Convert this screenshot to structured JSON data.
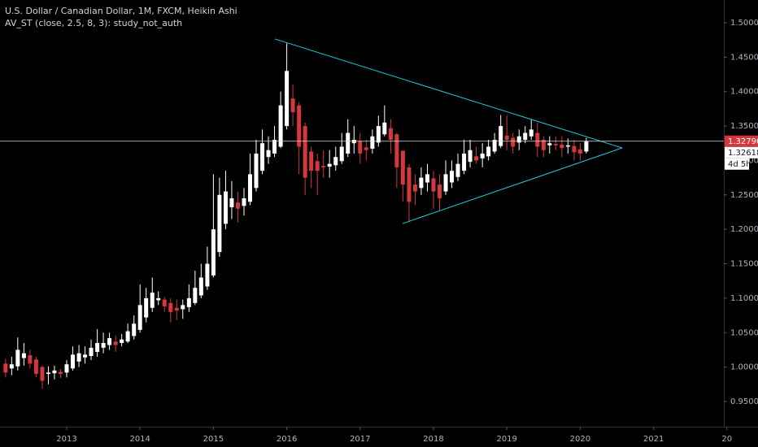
{
  "chart_data": {
    "type": "candlestick",
    "title": "U.S. Dollar / Canadian Dollar, 1M, FXCM, Heikin Ashi",
    "subtitle": "AV_ST (close, 2.5, 8, 3): study_not_auth",
    "up_color": "#ffffff",
    "down_color": "#d4373c",
    "x": [
      2012.167,
      2012.25,
      2012.333,
      2012.417,
      2012.5,
      2012.583,
      2012.667,
      2012.75,
      2012.833,
      2012.917,
      2013,
      2013.083,
      2013.167,
      2013.25,
      2013.333,
      2013.417,
      2013.5,
      2013.583,
      2013.667,
      2013.75,
      2013.833,
      2013.917,
      2014,
      2014.083,
      2014.167,
      2014.25,
      2014.333,
      2014.417,
      2014.5,
      2014.583,
      2014.667,
      2014.75,
      2014.833,
      2014.917,
      2015,
      2015.083,
      2015.167,
      2015.25,
      2015.333,
      2015.417,
      2015.5,
      2015.583,
      2015.667,
      2015.75,
      2015.833,
      2015.917,
      2016,
      2016.083,
      2016.167,
      2016.25,
      2016.333,
      2016.417,
      2016.5,
      2016.583,
      2016.667,
      2016.75,
      2016.833,
      2016.917,
      2017,
      2017.083,
      2017.167,
      2017.25,
      2017.333,
      2017.417,
      2017.5,
      2017.583,
      2017.667,
      2017.75,
      2017.833,
      2017.917,
      2018,
      2018.083,
      2018.167,
      2018.25,
      2018.333,
      2018.417,
      2018.5,
      2018.583,
      2018.667,
      2018.75,
      2018.833,
      2018.917,
      2019,
      2019.083,
      2019.167,
      2019.25,
      2019.333,
      2019.417,
      2019.5,
      2019.583,
      2019.667,
      2019.75,
      2019.833,
      2019.917,
      2020,
      2020.083
    ],
    "open": [
      1.005,
      0.998,
      1.001,
      1.013,
      1.017,
      1.011,
      1.0,
      0.99,
      0.991,
      0.993,
      0.992,
      0.998,
      1.008,
      1.014,
      1.016,
      1.022,
      1.028,
      1.032,
      1.037,
      1.035,
      1.037,
      1.045,
      1.054,
      1.072,
      1.086,
      1.097,
      1.098,
      1.093,
      1.086,
      1.084,
      1.087,
      1.093,
      1.104,
      1.117,
      1.133,
      1.167,
      1.208,
      1.232,
      1.239,
      1.234,
      1.24,
      1.26,
      1.285,
      1.305,
      1.31,
      1.32,
      1.35,
      1.39,
      1.38,
      1.35,
      1.313,
      1.299,
      1.292,
      1.291,
      1.293,
      1.299,
      1.31,
      1.325,
      1.328,
      1.319,
      1.317,
      1.326,
      1.338,
      1.347,
      1.338,
      1.314,
      1.29,
      1.265,
      1.26,
      1.268,
      1.274,
      1.265,
      1.255,
      1.268,
      1.276,
      1.285,
      1.298,
      1.306,
      1.303,
      1.306,
      1.313,
      1.321,
      1.336,
      1.333,
      1.326,
      1.33,
      1.335,
      1.34,
      1.33,
      1.322,
      1.324,
      1.323,
      1.32,
      1.321,
      1.316,
      1.313
    ],
    "high": [
      1.012,
      1.015,
      1.043,
      1.035,
      1.025,
      1.015,
      1.002,
      1.001,
      1.002,
      0.997,
      1.01,
      1.03,
      1.032,
      1.03,
      1.04,
      1.055,
      1.05,
      1.05,
      1.046,
      1.048,
      1.063,
      1.075,
      1.12,
      1.115,
      1.13,
      1.11,
      1.102,
      1.1,
      1.098,
      1.098,
      1.12,
      1.14,
      1.15,
      1.175,
      1.28,
      1.275,
      1.285,
      1.27,
      1.255,
      1.26,
      1.31,
      1.33,
      1.345,
      1.335,
      1.35,
      1.4,
      1.47,
      1.41,
      1.385,
      1.355,
      1.32,
      1.31,
      1.315,
      1.315,
      1.32,
      1.34,
      1.36,
      1.35,
      1.34,
      1.33,
      1.345,
      1.365,
      1.38,
      1.36,
      1.34,
      1.315,
      1.295,
      1.28,
      1.29,
      1.295,
      1.285,
      1.28,
      1.3,
      1.3,
      1.31,
      1.33,
      1.33,
      1.32,
      1.325,
      1.33,
      1.34,
      1.366,
      1.365,
      1.34,
      1.345,
      1.35,
      1.36,
      1.355,
      1.335,
      1.335,
      1.335,
      1.335,
      1.332,
      1.33,
      1.325,
      1.333
    ],
    "low": [
      0.985,
      0.988,
      0.995,
      1.002,
      0.998,
      0.985,
      0.968,
      0.975,
      0.982,
      0.984,
      0.985,
      0.995,
      1.0,
      1.005,
      1.01,
      1.015,
      1.02,
      1.025,
      1.022,
      1.03,
      1.035,
      1.04,
      1.05,
      1.065,
      1.08,
      1.09,
      1.08,
      1.065,
      1.068,
      1.07,
      1.08,
      1.09,
      1.1,
      1.112,
      1.13,
      1.16,
      1.2,
      1.215,
      1.21,
      1.22,
      1.235,
      1.255,
      1.28,
      1.295,
      1.305,
      1.318,
      1.345,
      1.35,
      1.28,
      1.25,
      1.26,
      1.25,
      1.275,
      1.275,
      1.285,
      1.295,
      1.305,
      1.31,
      1.295,
      1.3,
      1.31,
      1.32,
      1.335,
      1.31,
      1.26,
      1.24,
      1.21,
      1.235,
      1.25,
      1.255,
      1.23,
      1.228,
      1.25,
      1.26,
      1.27,
      1.28,
      1.29,
      1.295,
      1.29,
      1.3,
      1.31,
      1.318,
      1.315,
      1.31,
      1.315,
      1.325,
      1.33,
      1.305,
      1.305,
      1.31,
      1.315,
      1.305,
      1.31,
      1.3,
      1.3,
      1.31
    ],
    "close": [
      0.992,
      1.004,
      1.025,
      1.02,
      1.005,
      0.99,
      0.98,
      0.992,
      0.995,
      0.99,
      1.004,
      1.018,
      1.02,
      1.018,
      1.028,
      1.035,
      1.035,
      1.042,
      1.032,
      1.04,
      1.052,
      1.063,
      1.09,
      1.1,
      1.108,
      1.1,
      1.088,
      1.08,
      1.082,
      1.09,
      1.1,
      1.115,
      1.13,
      1.15,
      1.2,
      1.25,
      1.255,
      1.245,
      1.23,
      1.245,
      1.28,
      1.31,
      1.325,
      1.315,
      1.33,
      1.38,
      1.43,
      1.37,
      1.32,
      1.275,
      1.285,
      1.285,
      1.29,
      1.295,
      1.305,
      1.32,
      1.34,
      1.33,
      1.31,
      1.315,
      1.335,
      1.35,
      1.355,
      1.33,
      1.29,
      1.265,
      1.24,
      1.255,
      1.275,
      1.28,
      1.255,
      1.245,
      1.28,
      1.285,
      1.295,
      1.31,
      1.315,
      1.3,
      1.31,
      1.32,
      1.33,
      1.35,
      1.33,
      1.32,
      1.335,
      1.34,
      1.345,
      1.32,
      1.315,
      1.325,
      1.322,
      1.318,
      1.322,
      1.312,
      1.31,
      1.328
    ],
    "xlim": [
      2012.091,
      2021.958
    ],
    "xticks": [
      2013,
      2014,
      2015,
      2016,
      2017,
      2018,
      2019,
      2020,
      2021,
      {
        "value": 2022,
        "label": "20"
      }
    ],
    "ylim": [
      0.9134,
      1.533
    ],
    "yticks": [
      {
        "value": 0.95,
        "label": "0.95000"
      },
      {
        "value": 1.0,
        "label": "1.00000"
      },
      {
        "value": 1.05,
        "label": "1.05000"
      },
      {
        "value": 1.1,
        "label": "1.10000"
      },
      {
        "value": 1.15,
        "label": "1.15000"
      },
      {
        "value": 1.2,
        "label": "1.20000"
      },
      {
        "value": 1.25,
        "label": "1.25000"
      },
      {
        "value": 1.3,
        "label": "1.30000"
      },
      {
        "value": 1.35,
        "label": "1.35000"
      },
      {
        "value": 1.4,
        "label": "1.40000"
      },
      {
        "value": 1.45,
        "label": "1.45000"
      },
      {
        "value": 1.5,
        "label": "1.50000"
      }
    ],
    "last_price": {
      "value": 1.3279,
      "label": "1.32790",
      "color": "#d4373c"
    },
    "close_price": {
      "value": 1.32618,
      "label": "1.32618"
    },
    "countdown": "4d 5h",
    "trendlines": [
      {
        "color": "#26c6da",
        "x": [
          2015.838,
          2020.572
        ],
        "y": [
          1.4764,
          1.3182
        ]
      },
      {
        "color": "#26c6da",
        "x": [
          2017.579,
          2020.572
        ],
        "y": [
          1.2084,
          1.3182
        ]
      }
    ]
  }
}
